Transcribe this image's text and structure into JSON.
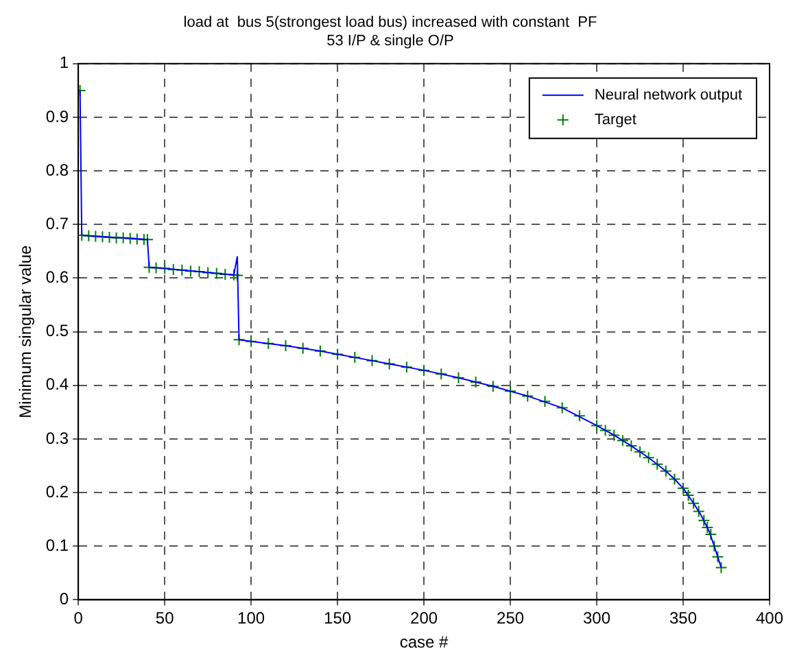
{
  "chart_data": {
    "type": "line",
    "title": "load at  bus 5(strongest load bus) increased with constant  PF",
    "subtitle": "53 I/P & single O/P",
    "xlabel": "case #",
    "ylabel": "Minimum singular value",
    "xlim": [
      0,
      400
    ],
    "xticks": [
      0,
      50,
      100,
      150,
      200,
      250,
      300,
      350,
      400
    ],
    "ylim": [
      0,
      1
    ],
    "yticks": [
      0,
      0.1,
      0.2,
      0.3,
      0.4,
      0.5,
      0.6,
      0.7,
      0.8,
      0.9,
      1
    ],
    "grid": true,
    "legend": "top right",
    "series": [
      {
        "name": "Neural network output",
        "color": "#0000ff",
        "marker": "none",
        "x": [
          1,
          2,
          10,
          20,
          30,
          40,
          41,
          50,
          60,
          70,
          80,
          90,
          92,
          93,
          100,
          120,
          140,
          160,
          180,
          200,
          220,
          240,
          260,
          280,
          300,
          310,
          320,
          330,
          340,
          345,
          350,
          355,
          360,
          365,
          368,
          370,
          372
        ],
        "values": [
          0.95,
          0.68,
          0.678,
          0.676,
          0.674,
          0.672,
          0.62,
          0.618,
          0.615,
          0.612,
          0.609,
          0.606,
          0.64,
          0.485,
          0.482,
          0.474,
          0.464,
          0.452,
          0.44,
          0.428,
          0.414,
          0.398,
          0.38,
          0.358,
          0.325,
          0.307,
          0.287,
          0.265,
          0.24,
          0.225,
          0.208,
          0.185,
          0.16,
          0.128,
          0.1,
          0.08,
          0.06
        ]
      },
      {
        "name": "Target",
        "type": "scatter",
        "color": "#008000",
        "marker": "cross",
        "x": [
          1,
          2,
          6,
          10,
          14,
          18,
          22,
          26,
          30,
          34,
          38,
          40,
          41,
          45,
          50,
          55,
          60,
          65,
          70,
          75,
          80,
          85,
          90,
          92,
          93,
          100,
          110,
          120,
          130,
          140,
          150,
          160,
          170,
          180,
          190,
          200,
          210,
          220,
          230,
          240,
          250,
          260,
          270,
          280,
          290,
          300,
          305,
          310,
          315,
          320,
          325,
          330,
          335,
          340,
          345,
          350,
          353,
          356,
          359,
          362,
          364,
          366,
          368,
          370,
          372
        ],
        "values": [
          0.95,
          0.68,
          0.679,
          0.678,
          0.677,
          0.676,
          0.675,
          0.675,
          0.674,
          0.673,
          0.672,
          0.672,
          0.62,
          0.619,
          0.618,
          0.616,
          0.615,
          0.613,
          0.612,
          0.61,
          0.609,
          0.607,
          0.606,
          0.605,
          0.485,
          0.482,
          0.478,
          0.474,
          0.469,
          0.464,
          0.458,
          0.452,
          0.446,
          0.44,
          0.434,
          0.428,
          0.421,
          0.414,
          0.406,
          0.398,
          0.389,
          0.38,
          0.37,
          0.358,
          0.343,
          0.325,
          0.316,
          0.307,
          0.297,
          0.287,
          0.276,
          0.265,
          0.253,
          0.24,
          0.225,
          0.208,
          0.195,
          0.18,
          0.165,
          0.148,
          0.135,
          0.122,
          0.1,
          0.08,
          0.06
        ]
      }
    ]
  }
}
